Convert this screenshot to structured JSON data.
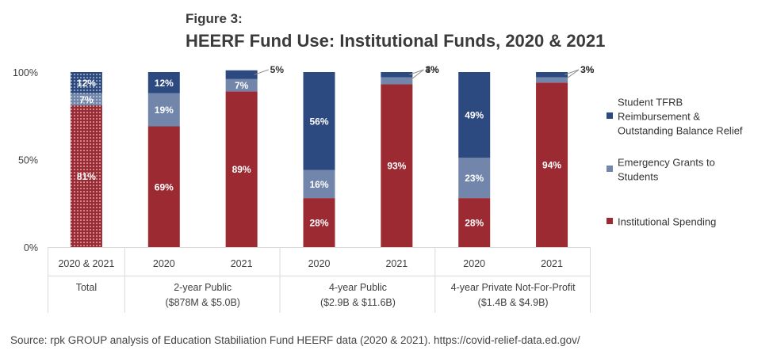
{
  "figure_label": "Figure 3:",
  "title": "HEERF Fund Use: Institutional Funds, 2020 & 2021",
  "source": "Source: rpk GROUP analysis of Education Stabiliation Fund HEERF data (2020 & 2021). https://covid-relief-data.ed.gov/",
  "colors": {
    "institutional": "#9b2a32",
    "grants": "#7286ab",
    "tfrb": "#2d4a80",
    "grid": "#d9d9d9",
    "axis_text": "#404040"
  },
  "chart_data": {
    "type": "bar",
    "stacked": true,
    "percent": true,
    "ylim": [
      0,
      100
    ],
    "yticks": [
      "0%",
      "50%",
      "100%"
    ],
    "categories": [
      "2020 & 2021",
      "2020",
      "2021",
      "2020",
      "2021",
      "2020",
      "2021"
    ],
    "groups": [
      {
        "name": "Total",
        "sub": "",
        "span": 1
      },
      {
        "name": "2-year Public",
        "sub": "($878M & $5.0B)",
        "span": 2
      },
      {
        "name": "4-year Public",
        "sub": "($2.9B & $11.6B)",
        "span": 2
      },
      {
        "name": "4-year Private Not-For-Profit",
        "sub": "($1.4B & $4.9B)",
        "span": 2
      }
    ],
    "series": [
      {
        "name": "Institutional Spending",
        "values": [
          81,
          69,
          89,
          28,
          93,
          28,
          94
        ],
        "labels": [
          "81%",
          "69%",
          "89%",
          "28%",
          "93%",
          "28%",
          "94%"
        ]
      },
      {
        "name": "Emergency Grants to Students",
        "values": [
          7,
          19,
          7,
          16,
          4,
          23,
          3
        ],
        "labels": [
          "7%",
          "19%",
          "7%",
          "16%",
          "4%",
          "23%",
          "3%"
        ]
      },
      {
        "name": "Student TFRB Reimbursement & Outstanding Balance Relief",
        "values": [
          12,
          12,
          5,
          56,
          3,
          49,
          3
        ],
        "labels": [
          "12%",
          "12%",
          "5%",
          "56%",
          "3%",
          "49%",
          "3%"
        ]
      }
    ],
    "dotted_bars": [
      0
    ],
    "legend": [
      {
        "lines": [
          "Student TFRB",
          "Reimbursement &",
          "Outstanding Balance Relief"
        ],
        "series": 2
      },
      {
        "lines": [
          "Emergency Grants to",
          "Students"
        ],
        "series": 1
      },
      {
        "lines": [
          "Institutional Spending"
        ],
        "series": 0
      }
    ],
    "legend_position": "right",
    "grid": false
  }
}
